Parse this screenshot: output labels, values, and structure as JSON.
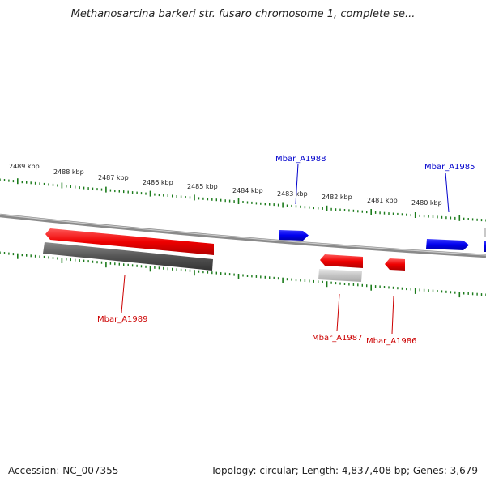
{
  "title": "Methanosarcina barkeri str. fusaro chromosome 1, complete se...",
  "footer": {
    "accession": "Accession: NC_007355",
    "summary": "Topology: circular; Length: 4,837,408 bp; Genes: 3,679"
  },
  "kbp_ticks": [
    {
      "label": "2489 kbp"
    },
    {
      "label": "2488 kbp"
    },
    {
      "label": "2487 kbp"
    },
    {
      "label": "2486 kbp"
    },
    {
      "label": "2485 kbp"
    },
    {
      "label": "2484 kbp"
    },
    {
      "label": "2483 kbp"
    },
    {
      "label": "2482 kbp"
    },
    {
      "label": "2481 kbp"
    },
    {
      "label": "2480 kbp"
    }
  ],
  "genes": [
    {
      "name": "Mbar_A1988",
      "color": "#0000cc"
    },
    {
      "name": "Mbar_A1985",
      "color": "#0000cc"
    },
    {
      "name": "Mbar_A1989",
      "color": "#cc0000"
    },
    {
      "name": "Mbar_A1987",
      "color": "#cc0000"
    },
    {
      "name": "Mbar_A1986",
      "color": "#cc0000"
    }
  ],
  "colors": {
    "backbone": "#777777",
    "tick": "#1a7a1a",
    "forward_gene": "#0000ff",
    "reverse_gene": "#ff0000",
    "rna_gene": "#555555"
  }
}
